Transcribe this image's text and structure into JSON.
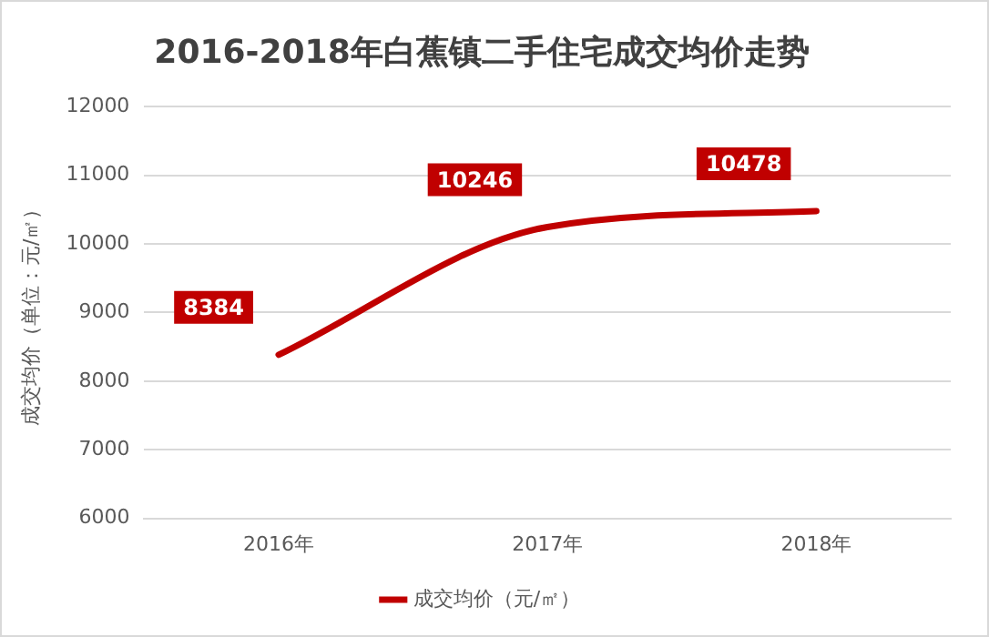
{
  "chart_data": {
    "type": "line",
    "title": "2016-2018年白蕉镇二手住宅成交均价走势",
    "ylabel": "成交均价（单位：元/㎡）",
    "categories": [
      "2016年",
      "2017年",
      "2018年"
    ],
    "series": [
      {
        "name": "成交均价（元/㎡）",
        "color": "#c00000",
        "values": [
          8384,
          10246,
          10478
        ]
      }
    ],
    "ylim": [
      6000,
      12000
    ],
    "yticks": [
      6000,
      7000,
      8000,
      9000,
      10000,
      11000,
      12000
    ],
    "grid": "y",
    "legend": "bottom",
    "marker": "none",
    "line_style": "solid",
    "data_labels": true
  }
}
